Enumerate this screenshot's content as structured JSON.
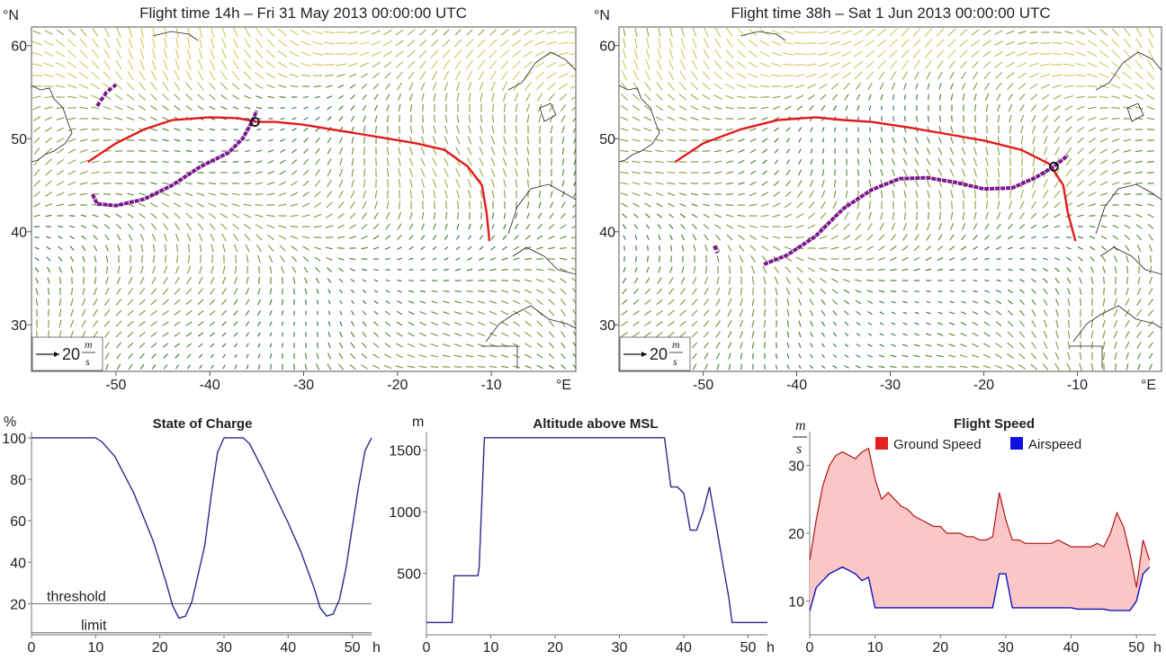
{
  "chart_data": [
    {
      "type": "map",
      "title": "Flight time 14h – Fri 31 May 2013 00:00:00 UTC",
      "x_unit": "°E",
      "y_unit": "°N",
      "x_ticks": [
        "-50",
        "-40",
        "-30",
        "-20",
        "-10"
      ],
      "y_ticks": [
        "60",
        "50",
        "40",
        "30"
      ],
      "xlim": [
        -59,
        -1
      ],
      "ylim": [
        25,
        62
      ],
      "scale": {
        "value": "20",
        "num": "m",
        "den": "s"
      },
      "route": [
        [
          -53,
          47.5
        ],
        [
          -50,
          49.5
        ],
        [
          -47,
          51
        ],
        [
          -44,
          52
        ],
        [
          -40,
          52.3
        ],
        [
          -37,
          52.2
        ],
        [
          -35,
          51.8
        ],
        [
          -33,
          51.8
        ],
        [
          -30,
          51.5
        ],
        [
          -27,
          51
        ],
        [
          -24,
          50.5
        ],
        [
          -21,
          50
        ],
        [
          -18,
          49.5
        ],
        [
          -15,
          48.8
        ],
        [
          -12.5,
          47
        ],
        [
          -11,
          45
        ],
        [
          -10.5,
          42
        ],
        [
          -10.2,
          39
        ]
      ],
      "trajectory": [
        [
          -52.5,
          44
        ],
        [
          -52,
          43
        ],
        [
          -50,
          42.8
        ],
        [
          -47,
          43.5
        ],
        [
          -44,
          45
        ],
        [
          -41,
          47
        ],
        [
          -38,
          48.5
        ],
        [
          -36.5,
          50
        ],
        [
          -35.5,
          51.8
        ],
        [
          -35,
          53
        ]
      ],
      "trajectory_extra": [
        [
          -52,
          53.5
        ],
        [
          -51,
          55
        ],
        [
          -50,
          55.8
        ]
      ],
      "current_position": [
        -35.2,
        51.8
      ]
    },
    {
      "type": "map",
      "title": "Flight time 38h – Sat 1 Jun 2013 00:00:00 UTC",
      "x_unit": "°E",
      "y_unit": "°N",
      "x_ticks": [
        "-50",
        "-40",
        "-30",
        "-20",
        "-10"
      ],
      "y_ticks": [
        "60",
        "50",
        "40",
        "30"
      ],
      "xlim": [
        -59,
        -1
      ],
      "ylim": [
        25,
        62
      ],
      "scale": {
        "value": "20",
        "num": "m",
        "den": "s"
      },
      "route": [
        [
          -53,
          47.5
        ],
        [
          -50,
          49.5
        ],
        [
          -46,
          51
        ],
        [
          -42,
          52
        ],
        [
          -38,
          52.3
        ],
        [
          -35,
          52
        ],
        [
          -32,
          51.8
        ],
        [
          -28,
          51.2
        ],
        [
          -24,
          50.5
        ],
        [
          -20,
          49.8
        ],
        [
          -16,
          48.8
        ],
        [
          -13,
          47.3
        ],
        [
          -11.5,
          45
        ],
        [
          -11,
          42
        ],
        [
          -10.2,
          39
        ]
      ],
      "trajectory": [
        [
          -43.5,
          36.5
        ],
        [
          -41,
          37.5
        ],
        [
          -38,
          39.5
        ],
        [
          -35,
          42.5
        ],
        [
          -32,
          44.5
        ],
        [
          -29,
          45.7
        ],
        [
          -26,
          45.8
        ],
        [
          -23,
          45.3
        ],
        [
          -20,
          44.6
        ],
        [
          -17,
          44.7
        ],
        [
          -14.5,
          45.8
        ],
        [
          -12.5,
          47
        ],
        [
          -11,
          48.2
        ]
      ],
      "trajectory_extra": [
        [
          -48.8,
          38.5
        ],
        [
          -48.5,
          37.7
        ]
      ],
      "current_position": [
        -12.5,
        47
      ]
    },
    {
      "type": "line",
      "title": "State of Charge",
      "ylabel": "%",
      "xlabel": "h",
      "xlim": [
        0,
        53
      ],
      "ylim": [
        5,
        103
      ],
      "x_ticks": [
        "0",
        "10",
        "20",
        "30",
        "40",
        "50"
      ],
      "y_ticks": [
        "20",
        "40",
        "60",
        "80",
        "100"
      ],
      "series": [
        {
          "name": "State of Charge",
          "x": [
            0,
            10,
            11,
            13,
            16,
            19,
            21,
            22,
            23,
            24,
            25,
            27,
            28,
            29,
            30,
            32,
            33,
            34,
            36,
            38,
            40,
            42,
            44,
            45,
            46,
            47,
            48,
            49,
            50,
            51,
            52,
            53
          ],
          "y": [
            100,
            100,
            98,
            91,
            73,
            50,
            30,
            19,
            13,
            14,
            21,
            48,
            72,
            93,
            100,
            100,
            100,
            97,
            85,
            72,
            59,
            45,
            28,
            18,
            14,
            15,
            22,
            37,
            57,
            77,
            94,
            100
          ]
        }
      ],
      "hlines": [
        {
          "label": "threshold",
          "y": 20
        },
        {
          "label": "limit",
          "y": 6
        }
      ]
    },
    {
      "type": "line",
      "title": "Altitude above MSL",
      "ylabel": "m",
      "xlabel": "h",
      "xlim": [
        0,
        53
      ],
      "ylim": [
        0,
        1650
      ],
      "x_ticks": [
        "0",
        "10",
        "20",
        "30",
        "40",
        "50"
      ],
      "y_ticks": [
        "500",
        "1000",
        "1500"
      ],
      "series": [
        {
          "name": "Altitude",
          "x": [
            0,
            4,
            4.3,
            8,
            8.2,
            9,
            37,
            38,
            39,
            40,
            41,
            42,
            43,
            44,
            45,
            46,
            47,
            47.5,
            53
          ],
          "y": [
            100,
            100,
            480,
            480,
            550,
            1600,
            1600,
            1200,
            1200,
            1150,
            850,
            850,
            1000,
            1200,
            900,
            600,
            300,
            100,
            100
          ]
        }
      ]
    },
    {
      "type": "area",
      "title": "Flight Speed",
      "ylabel_num": "m",
      "ylabel_den": "s",
      "xlabel": "h",
      "xlim": [
        0,
        53
      ],
      "ylim": [
        5,
        35
      ],
      "x_ticks": [
        "0",
        "10",
        "20",
        "30",
        "40",
        "50"
      ],
      "y_ticks": [
        "10",
        "20",
        "30"
      ],
      "series": [
        {
          "name": "Ground Speed",
          "color": "#e62020",
          "fill": "#fbc6c6",
          "x": [
            0,
            1,
            2,
            3,
            4,
            5,
            6,
            7,
            8,
            9,
            10,
            11,
            12,
            13,
            14,
            15,
            16,
            17,
            18,
            19,
            20,
            21,
            22,
            23,
            24,
            25,
            26,
            27,
            28,
            29,
            30,
            31,
            32,
            33,
            34,
            35,
            36,
            37,
            38,
            39,
            40,
            41,
            42,
            43,
            44,
            45,
            46,
            47,
            48,
            49,
            50,
            51,
            52
          ],
          "y": [
            16,
            22,
            27,
            30,
            31.5,
            32,
            31.5,
            31,
            32,
            32.5,
            28,
            25,
            26,
            25,
            24,
            23.5,
            22.5,
            22,
            21.5,
            21,
            21,
            20,
            20,
            20,
            19.5,
            19.5,
            19,
            19,
            19.5,
            26,
            22,
            19,
            19,
            18.5,
            18.5,
            18.5,
            18.5,
            18.5,
            19,
            18.5,
            18,
            18,
            18,
            18,
            18.5,
            18,
            20,
            23,
            21,
            17,
            12,
            19,
            16
          ]
        },
        {
          "name": "Airspeed",
          "color": "#1010e0",
          "x": [
            0,
            1,
            2,
            3,
            4,
            5,
            6,
            7,
            8,
            9,
            10,
            11,
            12,
            13,
            14,
            15,
            16,
            17,
            18,
            19,
            20,
            21,
            22,
            23,
            24,
            25,
            26,
            27,
            28,
            29,
            30,
            31,
            32,
            33,
            34,
            35,
            36,
            37,
            38,
            39,
            40,
            41,
            42,
            43,
            44,
            45,
            46,
            47,
            48,
            49,
            50,
            51,
            52
          ],
          "y": [
            8.5,
            12,
            13,
            14,
            14.5,
            15,
            14.5,
            14,
            13,
            13.5,
            9,
            9,
            9,
            9,
            9,
            9,
            9,
            9,
            9,
            9,
            9,
            9,
            9,
            9,
            9,
            9,
            9,
            9,
            9,
            14,
            14,
            9,
            9,
            9,
            9,
            9,
            9,
            9,
            9,
            9,
            9,
            8.8,
            8.8,
            8.8,
            8.8,
            8.8,
            8.6,
            8.6,
            8.6,
            8.6,
            10,
            14,
            15
          ]
        }
      ]
    }
  ]
}
